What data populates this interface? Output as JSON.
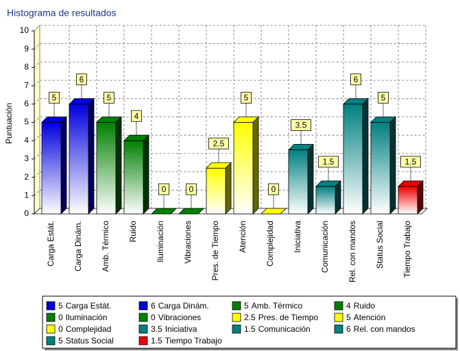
{
  "chart_data": {
    "type": "bar3d",
    "title": "Histograma de resultados",
    "y_label": "Puntuación",
    "categories": [
      "Carga Estát.",
      "Carga Dinám.",
      "Amb. Térmico",
      "Ruido",
      "Iluminación",
      "Vibraciones",
      "Pres. de Tiempo",
      "Atención",
      "Complejidad",
      "Iniciativa",
      "Comunicación",
      "Rel. con mandos",
      "Status Social",
      "Tiempo Trabajo"
    ],
    "values": [
      5,
      6,
      5,
      4,
      0,
      0,
      2.5,
      5,
      0,
      3.5,
      1.5,
      6,
      5,
      1.5
    ],
    "colors": [
      "#0000e0",
      "#0000e0",
      "#008000",
      "#008000",
      "#008000",
      "#008000",
      "#ffff00",
      "#ffff00",
      "#ffff00",
      "#008080",
      "#008080",
      "#008080",
      "#008080",
      "#ee0000"
    ],
    "ylim": [
      0,
      10
    ],
    "yticks": [
      0,
      1,
      2,
      3,
      4,
      5,
      6,
      7,
      8,
      9,
      10
    ],
    "grid": true,
    "legend": "bottom"
  }
}
